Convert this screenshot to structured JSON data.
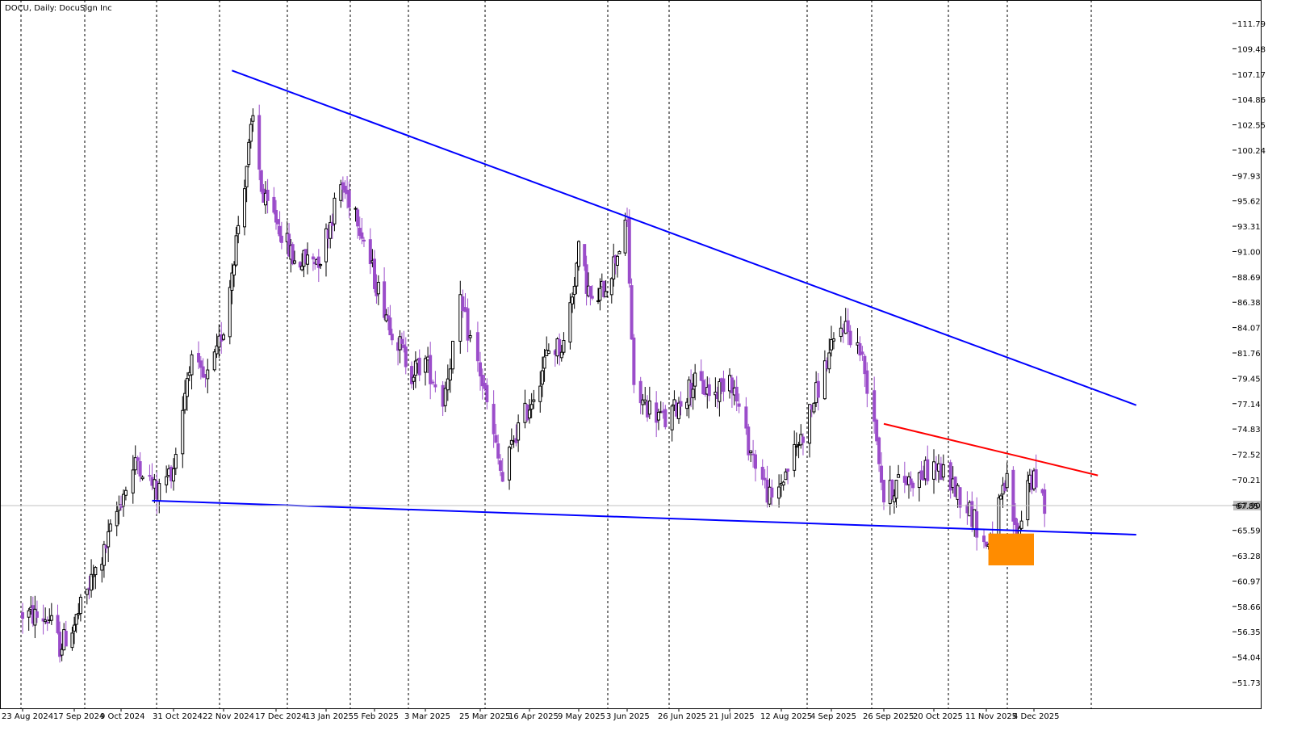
{
  "header": {
    "title": "DOCU, Daily:  DocuSign Inc"
  },
  "colors": {
    "background": "#ffffff",
    "frame": "#000000",
    "grid": "#000000",
    "bull_body": "#ffffff",
    "bull_outline": "#000000",
    "bear_body": "#9b4dca",
    "bear_outline": "#9b4dca",
    "upper_trendline": "#0000ff",
    "lower_trendline": "#0000ff",
    "resistance_line": "#ff0000",
    "highlight_zone": "#ff8c00",
    "price_line": "#c0c0c0",
    "price_badge": "#c0c0c0"
  },
  "chart_data": {
    "type": "candlestick",
    "title": "DOCU, Daily:  DocuSign Inc",
    "xlabel": "",
    "ylabel": "",
    "x_ticks": [
      "23 Aug 2024",
      "17 Sep 2024",
      "9 Oct 2024",
      "31 Oct 2024",
      "22 Nov 2024",
      "17 Dec 2024",
      "13 Jan 2025",
      "5 Feb 2025",
      "3 Mar 2025",
      "25 Mar 2025",
      "16 Apr 2025",
      "9 May 2025",
      "3 Jun 2025",
      "26 Jun 2025",
      "21 Jul 2025",
      "12 Aug 2025",
      "4 Sep 2025",
      "26 Sep 2025",
      "20 Oct 2025",
      "11 Nov 2025",
      "4 Dec 2025"
    ],
    "y_ticks": [
      "111.79",
      "109.48",
      "107.17",
      "104.86",
      "102.55",
      "100.24",
      "97.93",
      "95.62",
      "93.31",
      "91.00",
      "88.69",
      "86.38",
      "84.07",
      "81.76",
      "79.45",
      "77.14",
      "74.83",
      "72.52",
      "70.21",
      "67.90",
      "65.59",
      "63.28",
      "60.97",
      "58.66",
      "56.35",
      "54.04",
      "51.73"
    ],
    "ylim": [
      50.65,
      113.28
    ],
    "grid": "vertical dashed lines at each date label",
    "current_price": "67.85",
    "ohlc_anchors": [
      [
        "23 Aug 2024",
        58.0
      ],
      [
        "5 Sep 2024",
        57.5
      ],
      [
        "10 Sep 2024",
        55.0
      ],
      [
        "17 Sep 2024",
        57.0
      ],
      [
        "24 Sep 2024",
        60.5
      ],
      [
        "1 Oct 2024",
        63.5
      ],
      [
        "9 Oct 2024",
        68.5
      ],
      [
        "16 Oct 2024",
        72.0
      ],
      [
        "24 Oct 2024",
        69.0
      ],
      [
        "31 Oct 2024",
        71.5
      ],
      [
        "7 Nov 2024",
        81.0
      ],
      [
        "14 Nov 2024",
        79.0
      ],
      [
        "19 Nov 2024",
        81.5
      ],
      [
        "21 Nov 2024",
        83.5
      ],
      [
        "22 Nov 2024",
        84.0
      ],
      [
        "6 Dec 2024",
        103.0
      ],
      [
        "11 Dec 2024",
        95.5
      ],
      [
        "17 Dec 2024",
        94.0
      ],
      [
        "27 Dec 2024",
        90.0
      ],
      [
        "10 Jan 2025",
        90.5
      ],
      [
        "20 Jan 2025",
        97.0
      ],
      [
        "27 Jan 2025",
        95.0
      ],
      [
        "5 Feb 2025",
        88.5
      ],
      [
        "14 Feb 2025",
        84.0
      ],
      [
        "24 Feb 2025",
        80.0
      ],
      [
        "3 Mar 2025",
        81.0
      ],
      [
        "10 Mar 2025",
        77.5
      ],
      [
        "17 Mar 2025",
        86.0
      ],
      [
        "25 Mar 2025",
        80.0
      ],
      [
        "4 Apr 2025",
        70.0
      ],
      [
        "9 Apr 2025",
        74.0
      ],
      [
        "16 Apr 2025",
        77.0
      ],
      [
        "25 Apr 2025",
        82.0
      ],
      [
        "2 May 2025",
        82.5
      ],
      [
        "9 May 2025",
        91.0
      ],
      [
        "16 May 2025",
        86.0
      ],
      [
        "23 May 2025",
        88.0
      ],
      [
        "3 Jun 2025",
        93.5
      ],
      [
        "6 Jun 2025",
        78.0
      ],
      [
        "20 Jun 2025",
        75.5
      ],
      [
        "3 Jul 2025",
        79.0
      ],
      [
        "14 Jul 2025",
        78.0
      ],
      [
        "21 Jul 2025",
        80.0
      ],
      [
        "28 Jul 2025",
        74.0
      ],
      [
        "8 Aug 2025",
        68.0
      ],
      [
        "12 Aug 2025",
        70.0
      ],
      [
        "22 Aug 2025",
        74.5
      ],
      [
        "2 Sep 2025",
        81.0
      ],
      [
        "9 Sep 2025",
        84.5
      ],
      [
        "16 Sep 2025",
        82.0
      ],
      [
        "22 Sep 2025",
        76.0
      ],
      [
        "26 Sep 2025",
        68.5
      ],
      [
        "3 Oct 2025",
        70.0
      ],
      [
        "13 Oct 2025",
        70.5
      ],
      [
        "20 Oct 2025",
        71.5
      ],
      [
        "27 Oct 2025",
        70.0
      ],
      [
        "4 Nov 2025",
        67.5
      ],
      [
        "11 Nov 2025",
        64.0
      ],
      [
        "17 Nov 2025",
        67.5
      ],
      [
        "21 Nov 2025",
        70.0
      ],
      [
        "26 Nov 2025",
        64.5
      ],
      [
        "1 Dec 2025",
        70.5
      ],
      [
        "4 Dec 2025",
        70.0
      ],
      [
        "9 Dec 2025",
        67.85
      ]
    ],
    "annotations": {
      "upper_trendline": {
        "from": [
          "26 Nov 2024",
          107.5
        ],
        "to": [
          "21 Jan 2026",
          77.0
        ]
      },
      "lower_trendline": {
        "from": [
          "22 Oct 2024",
          68.3
        ],
        "to": [
          "21 Jan 2026",
          65.2
        ]
      },
      "resistance_line": {
        "from": [
          "26 Sep 2025",
          75.3
        ],
        "to": [
          "3 Jan 2026",
          70.6
        ]
      },
      "highlight_zone": {
        "x_from": "12 Nov 2025",
        "x_to": "4 Dec 2025",
        "y_from": 62.4,
        "y_to": 65.3
      }
    }
  }
}
